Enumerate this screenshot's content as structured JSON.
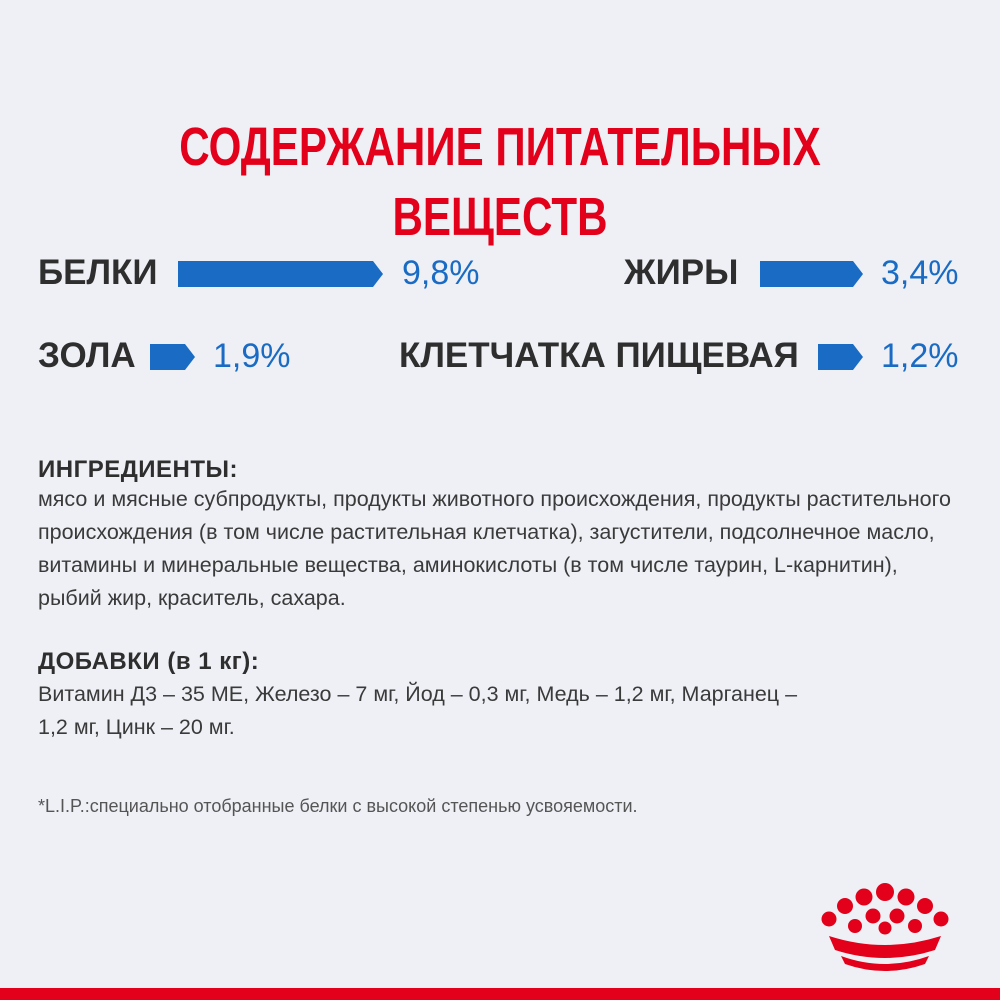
{
  "title": "СОДЕРЖАНИЕ ПИТАТЕЛЬНЫХ ВЕЩЕСТВ",
  "colors": {
    "accent_red": "#e2001a",
    "bar_blue": "#1a6bc4",
    "text_dark": "#2e2e2e",
    "background": "#eef0f5"
  },
  "nutrients": [
    {
      "label": "БЕЛКИ",
      "value": "9,8%",
      "percent": 9.8
    },
    {
      "label": "ЖИРЫ",
      "value": "3,4%",
      "percent": 3.4
    },
    {
      "label": "ЗОЛА",
      "value": "1,9%",
      "percent": 1.9
    },
    {
      "label": "КЛЕТЧАТКА ПИЩЕВАЯ",
      "value": "1,2%",
      "percent": 1.2
    }
  ],
  "ingredients": {
    "heading": "ИНГРЕДИЕНТЫ:",
    "text": "мясо и мясные субпродукты, продукты животного происхождения, продукты растительного происхождения (в том числе растительная клетчатка), загустители, подсолнечное масло, витамины и минеральные вещества, аминокислоты (в том числе таурин, L-карнитин), рыбий жир, краситель, сахара."
  },
  "additives": {
    "heading": "ДОБАВКИ (в 1 кг):",
    "text": "Витамин Д3 – 35 МЕ, Железо – 7 мг, Йод – 0,3 мг, Медь – 1,2 мг, Марганец – 1,2 мг, Цинк – 20 мг."
  },
  "footnote": "*L.I.P.:специально отобранные белки с высокой степенью усвояемости.",
  "logo_icon": "crown-logo-icon"
}
